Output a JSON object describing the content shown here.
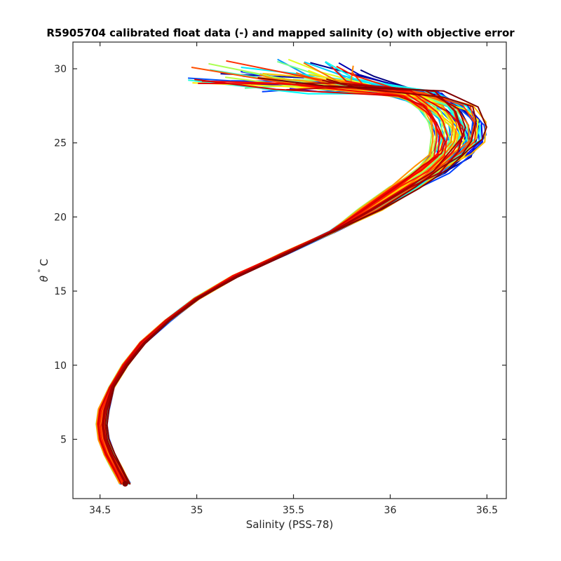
{
  "chart_data": {
    "type": "line",
    "title": "R5905704 calibrated float data (-) and mapped salinity (o) with objective error",
    "xlabel": "Salinity (PSS-78)",
    "ylabel_symbol": "θ",
    "ylabel_degree": "°",
    "ylabel_unit": "C",
    "xlim": [
      34.36,
      36.6
    ],
    "ylim": [
      1.0,
      31.8
    ],
    "xticks": [
      34.5,
      35,
      35.5,
      36,
      36.5
    ],
    "xtick_labels": [
      "34.5",
      "35",
      "35.5",
      "36",
      "36.5"
    ],
    "yticks": [
      5,
      10,
      15,
      20,
      25,
      30
    ],
    "ytick_labels": [
      "5",
      "10",
      "15",
      "20",
      "25",
      "30"
    ],
    "grid": false,
    "colormap": "jet (early profiles blue → late profiles red)",
    "profile_count": 60,
    "mean_profile": {
      "x": [
        34.63,
        34.59,
        34.55,
        34.52,
        34.51,
        34.52,
        34.56,
        34.63,
        34.72,
        34.85,
        35.0,
        35.2,
        35.45,
        35.7,
        35.9,
        36.08,
        36.22,
        36.32,
        36.36,
        36.35,
        36.3,
        36.15,
        35.9,
        35.6
      ],
      "y": [
        2.0,
        3.0,
        4.0,
        5.0,
        6.0,
        7.0,
        8.5,
        10.0,
        11.5,
        13.0,
        14.5,
        16.0,
        17.5,
        19.0,
        20.5,
        22.0,
        23.2,
        24.3,
        25.3,
        26.3,
        27.3,
        28.3,
        29.1,
        29.7
      ]
    }
  }
}
